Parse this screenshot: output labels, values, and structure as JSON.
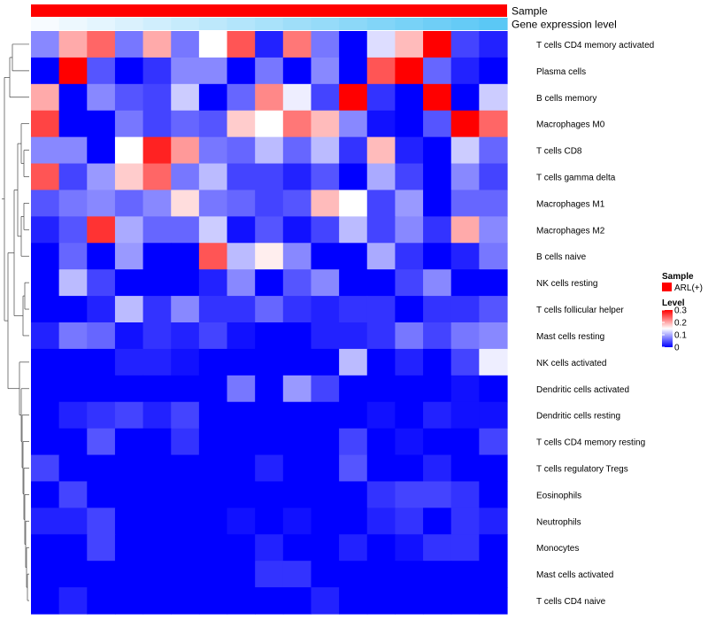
{
  "chart_data": {
    "type": "heatmap",
    "annotations": [
      {
        "label": "Sample",
        "style": "solid",
        "color": "#ff0000"
      },
      {
        "label": "Gene expression level",
        "style": "gradient",
        "color_low": "#f7fbff",
        "color_high": "#5bc8f5"
      }
    ],
    "rows": [
      "T cells CD4 memory activated",
      "Plasma cells",
      "B cells memory",
      "Macrophages M0",
      "T cells CD8",
      "T cells gamma delta",
      "Macrophages M1",
      "Macrophages M2",
      "B cells naive",
      "NK cells resting",
      "T cells follicular helper",
      "Mast cells resting",
      "NK cells activated",
      "Dendritic cells activated",
      "Dendritic cells resting",
      "T cells CD4 memory resting",
      "T cells regulatory  Tregs",
      "Eosinophils",
      "Neutrophils",
      "Monocytes",
      "Mast cells activated",
      "T cells CD4 naive"
    ],
    "n_columns": 17,
    "values": [
      [
        0.08,
        0.2,
        0.24,
        0.07,
        0.2,
        0.07,
        0.15,
        0.25,
        0.02,
        0.23,
        0.07,
        0.0,
        0.13,
        0.19,
        0.3,
        0.04,
        0.02
      ],
      [
        0.0,
        0.3,
        0.05,
        0.0,
        0.03,
        0.08,
        0.08,
        0.0,
        0.07,
        0.0,
        0.08,
        0.0,
        0.25,
        0.3,
        0.06,
        0.02,
        0.0
      ],
      [
        0.2,
        0.0,
        0.08,
        0.05,
        0.04,
        0.12,
        0.0,
        0.06,
        0.22,
        0.14,
        0.04,
        0.3,
        0.03,
        0.0,
        0.3,
        0.0,
        0.12
      ],
      [
        0.26,
        0.0,
        0.0,
        0.07,
        0.04,
        0.06,
        0.05,
        0.18,
        0.15,
        0.23,
        0.19,
        0.08,
        0.01,
        0.0,
        0.05,
        0.3,
        0.24
      ],
      [
        0.08,
        0.08,
        0.0,
        0.15,
        0.28,
        0.21,
        0.07,
        0.06,
        0.11,
        0.06,
        0.11,
        0.03,
        0.19,
        0.02,
        0.0,
        0.12,
        0.06
      ],
      [
        0.25,
        0.04,
        0.09,
        0.18,
        0.24,
        0.07,
        0.11,
        0.04,
        0.04,
        0.02,
        0.05,
        0.0,
        0.1,
        0.04,
        0.0,
        0.08,
        0.04
      ],
      [
        0.05,
        0.07,
        0.08,
        0.06,
        0.08,
        0.17,
        0.07,
        0.06,
        0.04,
        0.05,
        0.19,
        0.15,
        0.04,
        0.09,
        0.0,
        0.06,
        0.06
      ],
      [
        0.02,
        0.05,
        0.27,
        0.1,
        0.06,
        0.06,
        0.12,
        0.01,
        0.05,
        0.01,
        0.04,
        0.11,
        0.04,
        0.08,
        0.03,
        0.2,
        0.08
      ],
      [
        0.0,
        0.06,
        0.0,
        0.09,
        0.0,
        0.0,
        0.25,
        0.11,
        0.16,
        0.08,
        0.0,
        0.0,
        0.1,
        0.03,
        0.0,
        0.02,
        0.07
      ],
      [
        0.0,
        0.11,
        0.04,
        0.0,
        0.0,
        0.0,
        0.02,
        0.08,
        0.0,
        0.05,
        0.08,
        0.0,
        0.0,
        0.04,
        0.08,
        0.0,
        0.0
      ],
      [
        0.0,
        0.0,
        0.02,
        0.11,
        0.03,
        0.08,
        0.03,
        0.03,
        0.06,
        0.03,
        0.02,
        0.03,
        0.03,
        0.0,
        0.03,
        0.03,
        0.05
      ],
      [
        0.02,
        0.07,
        0.06,
        0.01,
        0.03,
        0.02,
        0.04,
        0.01,
        0.0,
        0.0,
        0.02,
        0.02,
        0.03,
        0.07,
        0.04,
        0.07,
        0.08
      ],
      [
        0.0,
        0.0,
        0.0,
        0.02,
        0.02,
        0.01,
        0.0,
        0.0,
        0.0,
        0.0,
        0.0,
        0.11,
        0.0,
        0.02,
        0.0,
        0.04,
        0.14
      ],
      [
        0.0,
        0.0,
        0.0,
        0.0,
        0.0,
        0.0,
        0.0,
        0.07,
        0.0,
        0.09,
        0.04,
        0.0,
        0.0,
        0.0,
        0.0,
        0.01,
        0.0
      ],
      [
        0.0,
        0.02,
        0.03,
        0.04,
        0.02,
        0.04,
        0.0,
        0.0,
        0.0,
        0.0,
        0.0,
        0.0,
        0.01,
        0.0,
        0.02,
        0.01,
        0.01
      ],
      [
        0.0,
        0.0,
        0.05,
        0.0,
        0.0,
        0.03,
        0.0,
        0.0,
        0.0,
        0.0,
        0.0,
        0.04,
        0.0,
        0.01,
        0.0,
        0.0,
        0.04
      ],
      [
        0.04,
        0.0,
        0.0,
        0.0,
        0.0,
        0.0,
        0.0,
        0.0,
        0.02,
        0.0,
        0.0,
        0.05,
        0.0,
        0.0,
        0.02,
        0.0,
        0.0
      ],
      [
        0.0,
        0.04,
        0.0,
        0.0,
        0.0,
        0.0,
        0.0,
        0.0,
        0.0,
        0.0,
        0.0,
        0.0,
        0.03,
        0.04,
        0.04,
        0.03,
        0.0
      ],
      [
        0.02,
        0.02,
        0.04,
        0.0,
        0.0,
        0.0,
        0.0,
        0.01,
        0.0,
        0.01,
        0.0,
        0.0,
        0.02,
        0.03,
        0.0,
        0.03,
        0.02
      ],
      [
        0.0,
        0.0,
        0.04,
        0.0,
        0.0,
        0.0,
        0.0,
        0.0,
        0.02,
        0.0,
        0.0,
        0.02,
        0.0,
        0.01,
        0.03,
        0.03,
        0.0
      ],
      [
        0.0,
        0.0,
        0.0,
        0.0,
        0.0,
        0.0,
        0.0,
        0.0,
        0.03,
        0.03,
        0.0,
        0.0,
        0.0,
        0.0,
        0.0,
        0.0,
        0.0
      ],
      [
        0.0,
        0.02,
        0.0,
        0.0,
        0.0,
        0.0,
        0.0,
        0.0,
        0.0,
        0.0,
        0.02,
        0.0,
        0.0,
        0.0,
        0.0,
        0.0,
        0.0
      ]
    ],
    "color_scale": {
      "low": "#0000ff",
      "mid": "#ffffff",
      "high": "#ff0000",
      "min": 0,
      "mid_value": 0.15,
      "max": 0.3
    },
    "legend": {
      "sample_title": "Sample",
      "sample_entry": "ARL(+)",
      "level_title": "Level",
      "level_ticks": [
        "0.3",
        "0.2",
        "0.1",
        "0"
      ],
      "level_tick_values": [
        0.3,
        0.2,
        0.1,
        0
      ]
    }
  }
}
